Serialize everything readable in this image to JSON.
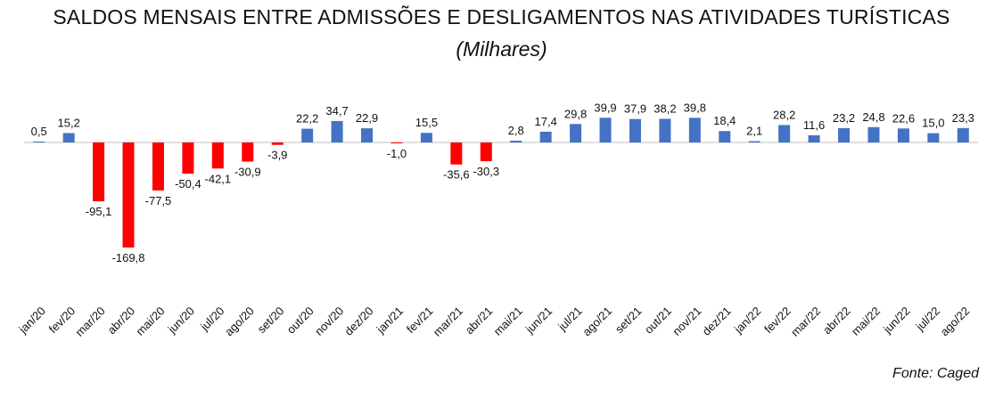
{
  "title": "SALDOS MENSAIS ENTRE ADMISSÕES E DESLIGAMENTOS NAS ATIVIDADES TURÍSTICAS",
  "subtitle": "(Milhares)",
  "source": "Fonte: Caged",
  "colors": {
    "positive": "#4472C4",
    "negative": "#FF0000",
    "axis": "#bfbfbf"
  },
  "chart_data": {
    "type": "bar",
    "title": "SALDOS MENSAIS ENTRE ADMISSÕES E DESLIGAMENTOS NAS ATIVIDADES TURÍSTICAS",
    "subtitle": "(Milhares)",
    "categories": [
      "jan/20",
      "fev/20",
      "mar/20",
      "abr/20",
      "mai/20",
      "jun/20",
      "jul/20",
      "ago/20",
      "set/20",
      "out/20",
      "nov/20",
      "dez/20",
      "jan/21",
      "fev/21",
      "mar/21",
      "abr/21",
      "mai/21",
      "jun/21",
      "jul/21",
      "ago/21",
      "set/21",
      "out/21",
      "nov/21",
      "dez/21",
      "jan/22",
      "fev/22",
      "mar/22",
      "abr/22",
      "mai/22",
      "jun/22",
      "jul/22",
      "ago/22"
    ],
    "values": [
      0.5,
      15.2,
      -95.1,
      -169.8,
      -77.5,
      -50.4,
      -42.1,
      -30.9,
      -3.9,
      22.2,
      34.7,
      22.9,
      -1.0,
      15.5,
      -35.6,
      -30.3,
      2.8,
      17.4,
      29.8,
      39.9,
      37.9,
      38.2,
      39.8,
      18.4,
      2.1,
      28.2,
      11.6,
      23.2,
      24.8,
      22.6,
      15.0,
      23.3
    ],
    "value_labels": [
      "0,5",
      "15,2",
      "-95,1",
      "-169,8",
      "-77,5",
      "-50,4",
      "-42,1",
      "-30,9",
      "-3,9",
      "22,2",
      "34,7",
      "22,9",
      "-1,0",
      "15,5",
      "-35,6",
      "-30,3",
      "2,8",
      "17,4",
      "29,8",
      "39,9",
      "37,9",
      "38,2",
      "39,8",
      "18,4",
      "2,1",
      "28,2",
      "11,6",
      "23,2",
      "24,8",
      "22,6",
      "15,0",
      "23,3"
    ],
    "xlabel": "",
    "ylabel": "",
    "grid": false,
    "legend": "none"
  }
}
